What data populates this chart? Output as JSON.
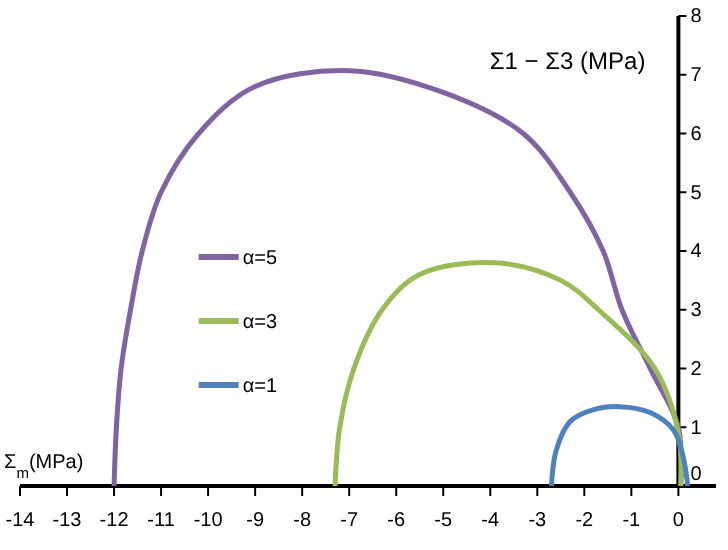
{
  "chart_data": {
    "type": "line",
    "xlabel": "Σ$_{m}$(MPa)",
    "ylabel": "Σ1 − Σ3 (MPa)",
    "xlim": [
      -14,
      0.8
    ],
    "ylim": [
      0,
      8
    ],
    "xticks": [
      -14,
      -13,
      -12,
      -11,
      -10,
      -9,
      -8,
      -7,
      -6,
      -5,
      -4,
      -3,
      -2,
      -1,
      0
    ],
    "yticks": [
      0,
      1,
      2,
      3,
      4,
      5,
      6,
      7,
      8
    ],
    "grid": false,
    "legend": "left",
    "marker": "none",
    "line_style": "solid",
    "series": [
      {
        "name": "α=5",
        "color": "#8064a2",
        "x": [
          -12,
          -11.95,
          -11.85,
          -11.65,
          -11.4,
          -11,
          -10.2,
          -9,
          -7,
          -5,
          -3.3,
          -2.3,
          -1.6,
          -1.2,
          -0.6,
          0,
          0.05
        ],
        "values": [
          0,
          1,
          2,
          3,
          4,
          5,
          6,
          6.8,
          7.07,
          6.7,
          6,
          5,
          4,
          3,
          2,
          1,
          0
        ]
      },
      {
        "name": "α=3",
        "color": "#9bbb59",
        "x": [
          -7.3,
          -7.2,
          -6.9,
          -6.3,
          -5.5,
          -3.9,
          -2.5,
          -1.7,
          -0.5,
          0,
          0.05
        ],
        "values": [
          0,
          1,
          2,
          3,
          3.6,
          3.8,
          3.5,
          3,
          2,
          0.9,
          0
        ]
      },
      {
        "name": "α=1",
        "color": "#4f81bd",
        "x": [
          -2.7,
          -2.6,
          -2.3,
          -1.8,
          -1.25,
          -0.6,
          -0.1,
          0.1,
          0.2
        ],
        "values": [
          0,
          0.6,
          1.1,
          1.3,
          1.35,
          1.25,
          0.95,
          0.5,
          0
        ]
      }
    ]
  }
}
